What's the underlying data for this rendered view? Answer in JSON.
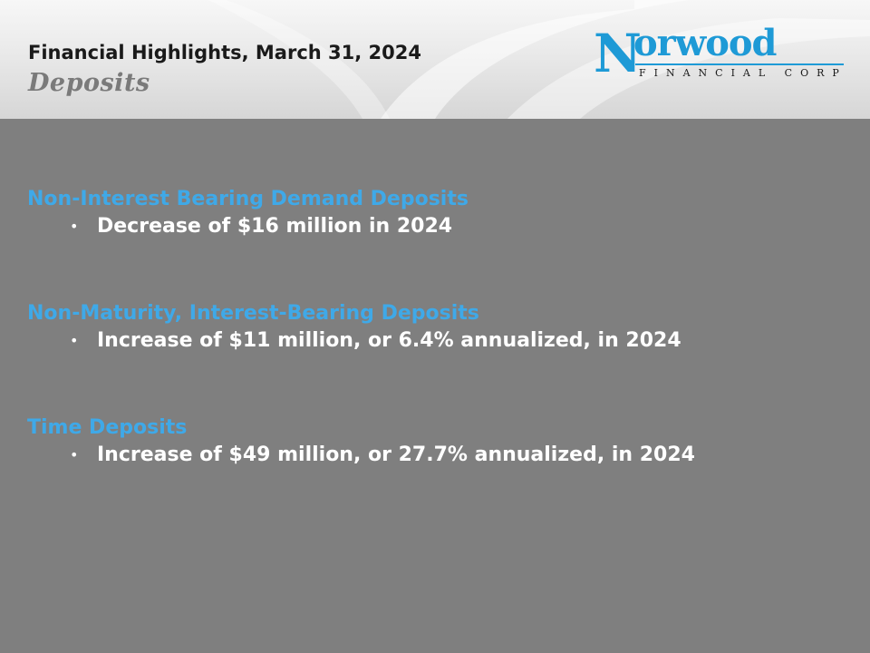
{
  "header": {
    "title": "Financial Highlights, March 31, 2024",
    "subtitle": "Deposits"
  },
  "logo": {
    "initial": "N",
    "word": "orwood",
    "tagline": "FINANCIAL CORP",
    "color": "#1e9ad6"
  },
  "sections": [
    {
      "heading": "Non-Interest Bearing Demand Deposits",
      "bullet": "Decrease of $16 million in 2024"
    },
    {
      "heading": "Non-Maturity, Interest-Bearing Deposits",
      "bullet": "Increase of $11 million, or 6.4% annualized, in 2024"
    },
    {
      "heading": "Time Deposits",
      "bullet": "Increase of $49 million, or 27.7% annualized, in 2024"
    }
  ],
  "colors": {
    "background": "#7f7f7f",
    "heading": "#3fa9e8",
    "bullet_text": "#ffffff"
  }
}
